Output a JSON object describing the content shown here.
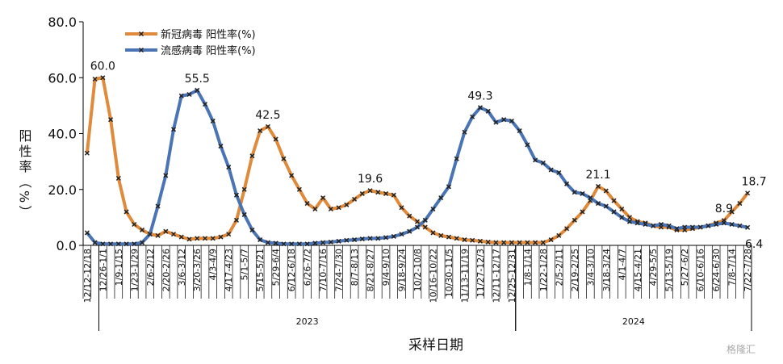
{
  "chart_data": {
    "type": "line",
    "x_label": "采样日期",
    "y_label": "阳性率（%）",
    "watermark": "格隆汇",
    "legend": "top-left",
    "ylim": [
      0,
      80
    ],
    "yticks": [
      {
        "value": 0,
        "label": "0.0"
      },
      {
        "value": 20,
        "label": "20.0"
      },
      {
        "value": 40,
        "label": "40.0"
      },
      {
        "value": 60,
        "label": "60.0"
      },
      {
        "value": 80,
        "label": "80.0"
      }
    ],
    "categories": [
      "12/12-12/18",
      null,
      "12/26-1/1",
      null,
      "1/9-1/15",
      null,
      "1/23-1/29",
      null,
      "2/6-2/12",
      null,
      "2/20-2/26",
      null,
      "3/6-3/12",
      null,
      "3/20-3/26",
      null,
      "4/3-4/9",
      null,
      "4/17-4/23",
      null,
      "5/1-5/7",
      null,
      "5/15-5/21",
      null,
      "5/29-6/4",
      null,
      "6/12-6/18",
      null,
      "6/26-7/2",
      null,
      "7/10-7/16",
      null,
      "7/24-7/30",
      null,
      "8/7-8/13",
      null,
      "8/21-8/27",
      null,
      "9/4-9/10",
      null,
      "9/18-9/24",
      null,
      "10/2-10/8",
      null,
      "10/16-10/22",
      null,
      "10/30-11/5",
      null,
      "11/13-11/19",
      null,
      "11/27-12/3",
      null,
      "12/11-12/17",
      null,
      "12/25-12/31",
      null,
      "1/8-1/14",
      null,
      "1/22-1/28",
      null,
      "2/5-2/11",
      null,
      "2/19-2/25",
      null,
      "3/4-3/10",
      null,
      "3/18-3/24",
      null,
      "4/1-4/7",
      null,
      "4/15-4/21",
      null,
      "4/29-5/5",
      null,
      "5/13-5/19",
      null,
      "5/27-6/2",
      null,
      "6/10-6/16",
      null,
      "6/24-6/30",
      null,
      "7/8-7/14",
      null,
      "7/22-7/28"
    ],
    "year_groups": [
      {
        "label": "2023",
        "from": 2,
        "to": 54
      },
      {
        "label": "2024",
        "from": 55,
        "to": 84
      }
    ],
    "series": [
      {
        "name": "新冠病毒 阳性率(%)",
        "color": "#e08a3c",
        "values": [
          33,
          59.5,
          60,
          45,
          24,
          12,
          7.5,
          5.5,
          4,
          3.5,
          5,
          4,
          3,
          2.2,
          2.5,
          2.5,
          2.5,
          3,
          4,
          9,
          20,
          32,
          41,
          42.5,
          38,
          31,
          25,
          20,
          15,
          13,
          17,
          13,
          13.5,
          14.5,
          16.5,
          18.5,
          19.6,
          19,
          18.5,
          18,
          13.5,
          10.5,
          8.5,
          6.5,
          4.5,
          3.5,
          3,
          2.5,
          2,
          1.8,
          1.5,
          1.2,
          1,
          1,
          1,
          1,
          1,
          1,
          1,
          2,
          3.5,
          6,
          9,
          12,
          16,
          21.1,
          19.5,
          16,
          13,
          10,
          8.5,
          8,
          7,
          6.5,
          6.5,
          5.5,
          5.5,
          6,
          6.5,
          7,
          8,
          8.9,
          12,
          15,
          18.7
        ],
        "value_labels": [
          null,
          null,
          "60.0",
          null,
          null,
          null,
          null,
          null,
          null,
          null,
          null,
          null,
          null,
          null,
          null,
          null,
          null,
          null,
          null,
          null,
          null,
          null,
          null,
          "42.5",
          null,
          null,
          null,
          null,
          null,
          null,
          null,
          null,
          null,
          null,
          null,
          null,
          "19.6",
          null,
          null,
          null,
          null,
          null,
          null,
          null,
          null,
          null,
          null,
          null,
          null,
          null,
          null,
          null,
          null,
          null,
          null,
          null,
          null,
          null,
          null,
          null,
          null,
          null,
          null,
          null,
          null,
          "21.1",
          null,
          null,
          null,
          null,
          null,
          null,
          null,
          null,
          null,
          null,
          null,
          null,
          null,
          null,
          null,
          "8.9",
          null,
          null,
          "18.7"
        ]
      },
      {
        "name": "流感病毒 阳性率(%)",
        "color": "#4a74b4",
        "values": [
          4.5,
          1,
          0.5,
          0.5,
          0.5,
          0.5,
          0.5,
          1,
          4,
          14,
          25,
          41.5,
          53.5,
          54,
          55.5,
          50.5,
          44.5,
          35.5,
          28,
          18,
          11,
          5.5,
          2,
          1,
          0.8,
          0.5,
          0.5,
          0.5,
          0.5,
          0.8,
          1,
          1.2,
          1.5,
          1.8,
          2,
          2.3,
          2.5,
          2.5,
          2.8,
          3.2,
          4,
          5,
          6.5,
          9,
          13,
          17,
          21,
          31,
          40.5,
          46,
          49.3,
          48,
          44,
          45,
          44.5,
          41,
          36,
          30.5,
          29.5,
          27,
          26,
          22,
          19,
          18.5,
          17,
          15,
          14,
          12,
          10,
          8.5,
          8,
          7.5,
          7,
          7.5,
          7,
          6,
          6.5,
          6.5,
          6.5,
          7,
          7.5,
          8,
          7.5,
          7,
          6.4
        ],
        "value_labels": [
          null,
          null,
          null,
          null,
          null,
          null,
          null,
          null,
          null,
          null,
          null,
          null,
          null,
          null,
          "55.5",
          null,
          null,
          null,
          null,
          null,
          null,
          null,
          null,
          null,
          null,
          null,
          null,
          null,
          null,
          null,
          null,
          null,
          null,
          null,
          null,
          null,
          null,
          null,
          null,
          null,
          null,
          null,
          null,
          null,
          null,
          null,
          null,
          null,
          null,
          null,
          "49.3",
          null,
          null,
          null,
          null,
          null,
          null,
          null,
          null,
          null,
          null,
          null,
          null,
          null,
          null,
          null,
          null,
          null,
          null,
          null,
          null,
          null,
          null,
          null,
          null,
          null,
          null,
          null,
          null,
          null,
          null,
          null,
          null,
          null,
          "6.4"
        ]
      }
    ]
  }
}
